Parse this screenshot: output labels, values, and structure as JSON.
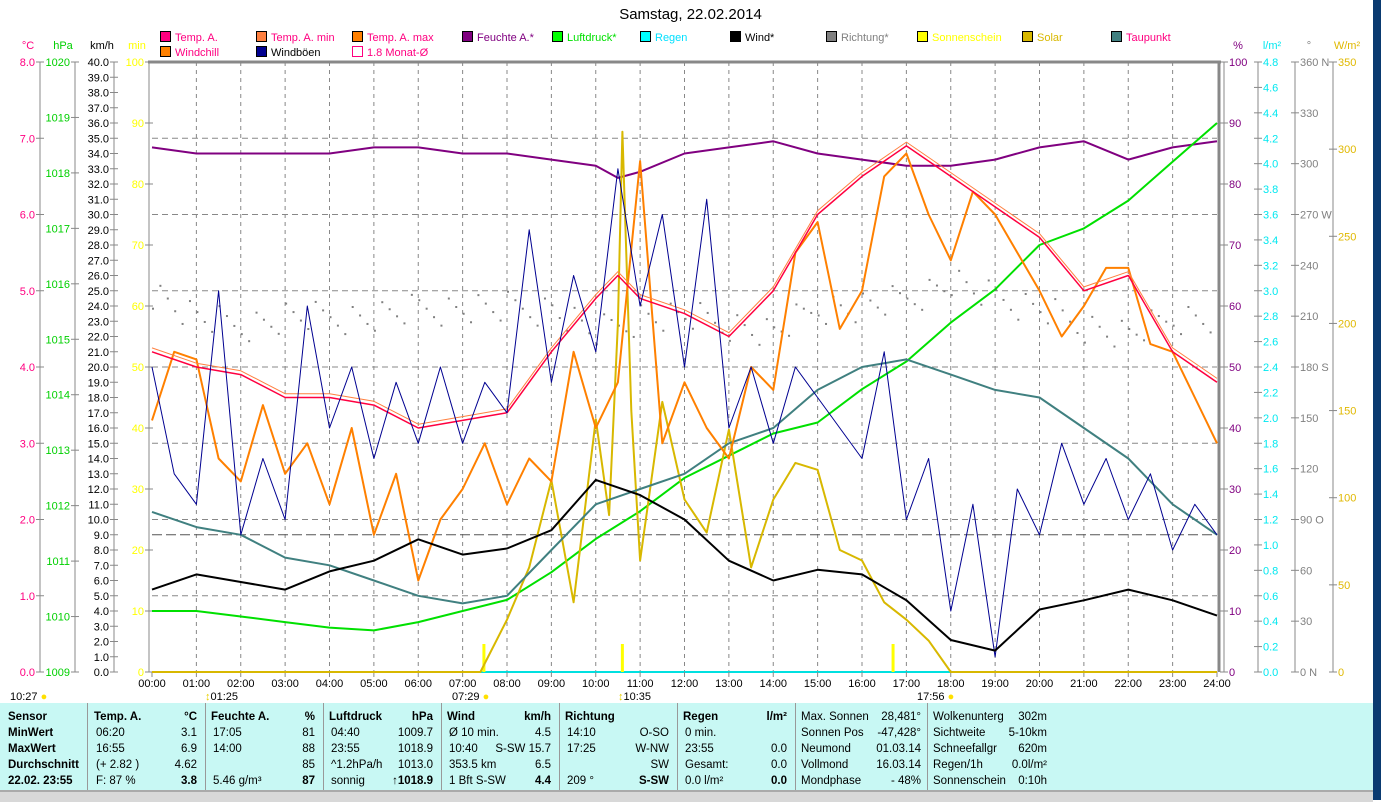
{
  "title": "Samstag, 22.02.2014",
  "legend": [
    {
      "label": "Temp. A.",
      "color": "#ff0080",
      "swatch": "#ff0080"
    },
    {
      "label": "Temp. A. min",
      "color": "#ff0080",
      "swatch": "#ff8040"
    },
    {
      "label": "Temp. A. max",
      "color": "#ff0080",
      "swatch": "#ff8000"
    },
    {
      "label": "Feuchte A.*",
      "color": "#800080",
      "swatch": "#800080"
    },
    {
      "label": "Luftdruck*",
      "color": "#00e000",
      "swatch": "#00ff00"
    },
    {
      "label": "Regen",
      "color": "#00e0ff",
      "swatch": "#00ffff"
    },
    {
      "label": "Wind*",
      "color": "#000000",
      "swatch": "#000000"
    },
    {
      "label": "Richtung*",
      "color": "#808080",
      "swatch": "#808080"
    },
    {
      "label": "Sonnenschein",
      "color": "#ffff00",
      "swatch": "#ffff00"
    },
    {
      "label": "Solar",
      "color": "#d8b800",
      "swatch": "#d8b800"
    },
    {
      "label": "Taupunkt",
      "color": "#ff0080",
      "swatch": "#408080"
    },
    {
      "label": "Windchill",
      "color": "#ff0080",
      "swatch": "#ff8000"
    },
    {
      "label": "Windböen",
      "color": "#000000",
      "swatch": "#000090"
    },
    {
      "label": "1.8 Monat-Ø",
      "color": "#ff0080",
      "swatch": "#ffffff"
    }
  ],
  "chart_data": {
    "type": "line",
    "title": "Samstag, 22.02.2014",
    "x_ticks": [
      "00:00",
      "01:00",
      "02:00",
      "03:00",
      "04:00",
      "05:00",
      "06:00",
      "07:00",
      "08:00",
      "09:00",
      "10:00",
      "11:00",
      "12:00",
      "13:00",
      "14:00",
      "15:00",
      "16:00",
      "17:00",
      "18:00",
      "19:00",
      "20:00",
      "21:00",
      "22:00",
      "23:00",
      "24:00"
    ],
    "xlim_hours": [
      0,
      24
    ],
    "axes_left": [
      {
        "unit": "°C",
        "min": 0,
        "max": 8,
        "step": 1,
        "dec": 1,
        "color": "#ff0080"
      },
      {
        "unit": "hPa",
        "min": 1009,
        "max": 1020,
        "step": 1,
        "dec": 0,
        "color": "#00d000"
      },
      {
        "unit": "km/h",
        "min": 0,
        "max": 40,
        "step": 1,
        "dec": 1,
        "color": "#000000"
      },
      {
        "unit": "min",
        "min": 0,
        "max": 100,
        "step": 10,
        "dec": 0,
        "color": "#ffff00"
      }
    ],
    "axes_right": [
      {
        "unit": "%",
        "min": 0,
        "max": 100,
        "step": 10,
        "dec": 0,
        "color": "#800080"
      },
      {
        "unit": "l/m²",
        "min": 0,
        "max": 4.8,
        "step": 0.2,
        "dec": 1,
        "color": "#00e8f0"
      },
      {
        "unit": "°",
        "min": 0,
        "max": 360,
        "step": 30,
        "dec": 0,
        "color": "#808080",
        "suffix": {
          "0": "N",
          "90": "O",
          "180": "S",
          "270": "W",
          "360": "N"
        }
      },
      {
        "unit": "W/m²",
        "min": 0,
        "max": 350,
        "step": 50,
        "dec": 0,
        "color": "#e0b800"
      }
    ],
    "monthly_avg_c": 1.8,
    "series": [
      {
        "name": "Feuchte A.",
        "axis": "%",
        "color": "#800080",
        "width": 2,
        "x": [
          0,
          1,
          2,
          3,
          4,
          5,
          6,
          7,
          8,
          9,
          10,
          10.5,
          11,
          12,
          13,
          14,
          15,
          16,
          17,
          18,
          19,
          20,
          21,
          22,
          23,
          24
        ],
        "values": [
          86,
          85,
          85,
          85,
          85,
          86,
          86,
          85,
          85,
          84,
          83,
          81,
          82,
          85,
          86,
          87,
          85,
          84,
          83,
          83,
          84,
          86,
          87,
          84,
          86,
          87
        ]
      },
      {
        "name": "Luftdruck",
        "axis": "hPa",
        "color": "#00e000",
        "width": 2,
        "x": [
          0,
          1,
          2,
          3,
          4,
          5,
          6,
          7,
          8,
          9,
          10,
          11,
          12,
          13,
          14,
          15,
          16,
          17,
          18,
          19,
          20,
          21,
          22,
          23,
          24
        ],
        "values": [
          1010.1,
          1010.1,
          1010.0,
          1009.9,
          1009.8,
          1009.75,
          1009.9,
          1010.1,
          1010.3,
          1010.8,
          1011.4,
          1011.9,
          1012.5,
          1012.9,
          1013.3,
          1013.5,
          1014.1,
          1014.6,
          1015.3,
          1015.9,
          1016.7,
          1017.0,
          1017.5,
          1018.2,
          1018.9
        ]
      },
      {
        "name": "Solar",
        "axis": "W/m²",
        "color": "#d8b800",
        "width": 2,
        "x": [
          0,
          7.4,
          8,
          8.5,
          9,
          9.5,
          10,
          10.3,
          10.5,
          10.6,
          10.8,
          11,
          11.5,
          12,
          12.5,
          13,
          13.5,
          14,
          14.5,
          15,
          15.5,
          16,
          16.5,
          17,
          17.5,
          18,
          24
        ],
        "values": [
          0,
          0,
          30,
          60,
          110,
          40,
          145,
          90,
          200,
          310,
          150,
          64,
          155,
          99,
          80,
          139,
          60,
          99,
          120,
          116,
          70,
          64,
          40,
          30,
          18,
          0,
          0
        ]
      },
      {
        "name": "Taupunkt",
        "axis": "°C",
        "color": "#408080",
        "width": 2,
        "x": [
          0,
          1,
          2,
          3,
          4,
          5,
          6,
          7,
          8,
          9,
          10,
          11,
          12,
          13,
          14,
          15,
          16,
          17,
          18,
          19,
          20,
          21,
          22,
          23,
          24
        ],
        "values": [
          2.1,
          1.9,
          1.8,
          1.5,
          1.4,
          1.2,
          1.0,
          0.9,
          1.0,
          1.6,
          2.2,
          2.4,
          2.6,
          3.0,
          3.2,
          3.7,
          4.0,
          4.1,
          3.9,
          3.7,
          3.6,
          3.2,
          2.8,
          2.2,
          1.8
        ]
      },
      {
        "name": "Windchill",
        "axis": "°C",
        "color": "#ff8000",
        "width": 2,
        "x": [
          0,
          0.5,
          1,
          1.5,
          2,
          2.5,
          3,
          3.5,
          4,
          4.5,
          5,
          5.5,
          6,
          6.5,
          7,
          7.5,
          8,
          8.5,
          9,
          9.5,
          10,
          10.5,
          11,
          11.5,
          12,
          12.5,
          13,
          13.5,
          14,
          14.5,
          15,
          15.5,
          16,
          16.5,
          17,
          17.5,
          18,
          18.5,
          19,
          19.5,
          20,
          20.5,
          21,
          21.5,
          22,
          22.5,
          23,
          23.5,
          24
        ],
        "values": [
          3.3,
          4.2,
          4.1,
          2.8,
          2.5,
          3.5,
          2.6,
          3.0,
          2.2,
          3.2,
          1.8,
          2.6,
          1.2,
          2.0,
          2.4,
          3.0,
          2.2,
          2.8,
          2.5,
          4.2,
          3.2,
          3.8,
          6.7,
          3.0,
          3.8,
          3.2,
          2.8,
          4.0,
          3.7,
          5.5,
          5.9,
          4.5,
          5.0,
          6.5,
          6.8,
          6.0,
          5.4,
          6.3,
          6.0,
          5.5,
          5.0,
          4.4,
          4.8,
          5.3,
          5.3,
          4.3,
          4.2,
          3.6,
          3.0
        ]
      },
      {
        "name": "Temp. A. max",
        "axis": "°C",
        "color": "#ff8040",
        "width": 1,
        "x": [
          0,
          1,
          2,
          3,
          4,
          5,
          6,
          7,
          8,
          9,
          10,
          10.5,
          11,
          12,
          13,
          14,
          15,
          16,
          17,
          18,
          19,
          20,
          21,
          22,
          23,
          24
        ],
        "values": [
          4.25,
          4.05,
          3.95,
          3.65,
          3.65,
          3.55,
          3.25,
          3.35,
          3.45,
          4.25,
          4.95,
          5.25,
          4.95,
          4.75,
          4.45,
          5.05,
          6.05,
          6.55,
          6.95,
          6.55,
          6.15,
          5.75,
          5.05,
          5.25,
          4.25,
          3.85
        ]
      },
      {
        "name": "Temp. A.",
        "axis": "°C",
        "color": "#ff0040",
        "width": 1.5,
        "x": [
          0,
          1,
          2,
          3,
          4,
          5,
          6,
          7,
          8,
          9,
          10,
          10.5,
          11,
          12,
          13,
          14,
          15,
          16,
          17,
          18,
          19,
          20,
          21,
          22,
          23,
          24
        ],
        "values": [
          4.2,
          4.0,
          3.9,
          3.6,
          3.6,
          3.5,
          3.2,
          3.3,
          3.4,
          4.2,
          4.9,
          5.2,
          4.9,
          4.7,
          4.4,
          5.0,
          6.0,
          6.5,
          6.9,
          6.5,
          6.1,
          5.7,
          5.0,
          5.2,
          4.2,
          3.8
        ]
      },
      {
        "name": "Windböen",
        "axis": "km/h",
        "color": "#000090",
        "width": 1,
        "x": [
          0,
          0.5,
          1,
          1.5,
          2,
          2.5,
          3,
          3.5,
          4,
          4.5,
          5,
          5.5,
          6,
          6.5,
          7,
          7.5,
          8,
          8.5,
          9,
          9.5,
          10,
          10.5,
          11,
          11.5,
          12,
          12.5,
          13,
          13.5,
          14,
          14.5,
          15,
          15.5,
          16,
          16.5,
          17,
          17.5,
          18,
          18.5,
          19,
          19.5,
          20,
          20.5,
          21,
          21.5,
          22,
          22.5,
          23,
          23.5,
          24
        ],
        "values": [
          20,
          13,
          11,
          25,
          9,
          14,
          10,
          24,
          16,
          20,
          14,
          19,
          15,
          20,
          15,
          19,
          17,
          29,
          19,
          26,
          21,
          33,
          24,
          30,
          20,
          31,
          16,
          20,
          15,
          20,
          18,
          16,
          14,
          21,
          10,
          14,
          4,
          11,
          1,
          12,
          9,
          15,
          11,
          14,
          10,
          13,
          8,
          11,
          9
        ]
      },
      {
        "name": "Wind",
        "axis": "km/h",
        "color": "#000000",
        "width": 2,
        "x": [
          0,
          1,
          2,
          3,
          4,
          5,
          6,
          7,
          8,
          9,
          10,
          11,
          12,
          13,
          14,
          15,
          16,
          17,
          18,
          19,
          20,
          21,
          22,
          23,
          24
        ],
        "values": [
          5.4,
          6.4,
          5.9,
          5.4,
          6.6,
          7.3,
          8.7,
          7.7,
          8.1,
          9.3,
          12.6,
          11.6,
          10.0,
          7.3,
          6.0,
          6.7,
          6.4,
          4.7,
          2.1,
          1.4,
          4.1,
          4.7,
          5.4,
          4.7,
          3.7
        ]
      }
    ],
    "direction": {
      "name": "Richtung",
      "axis": "°",
      "color": "#808080",
      "x": [
        0,
        1,
        2,
        3,
        4,
        5,
        6,
        7,
        8,
        9,
        10,
        11,
        12,
        13,
        14,
        15,
        16,
        17,
        18,
        19,
        20,
        21,
        22,
        23,
        24
      ],
      "values": [
        225,
        210,
        205,
        210,
        210,
        210,
        215,
        215,
        215,
        215,
        200,
        210,
        210,
        205,
        200,
        215,
        215,
        220,
        230,
        220,
        215,
        205,
        200,
        210,
        210
      ]
    },
    "sunshine_hours": [
      7.48,
      10.6,
      16.7
    ]
  },
  "events": [
    {
      "time": "10:27",
      "icon": "moon-icon"
    },
    {
      "time": "01:25",
      "icon": "moonrise-icon"
    },
    {
      "time": "07:29",
      "icon": "sunrise-icon"
    },
    {
      "time": "10:35",
      "icon": "moonset-icon"
    },
    {
      "time": "17:56",
      "icon": "sunset-icon"
    }
  ],
  "table": {
    "sensor": {
      "head": "Sensor",
      "rows": [
        "MinWert",
        "MaxWert",
        "Durchschnitt",
        "22.02. 23:55"
      ]
    },
    "cols": [
      {
        "head": "Temp. A.",
        "unit": "°C",
        "rows": [
          [
            "06:20",
            "3.1"
          ],
          [
            "16:55",
            "6.9"
          ],
          [
            "(+ 2.82 )",
            "4.62"
          ],
          [
            "F: 87 %",
            "3.8"
          ]
        ]
      },
      {
        "head": "Feuchte A.",
        "unit": "%",
        "rows": [
          [
            "17:05",
            "81"
          ],
          [
            "14:00",
            "88"
          ],
          [
            "",
            "85"
          ],
          [
            "5.46 g/m³",
            "87"
          ]
        ]
      },
      {
        "head": "Luftdruck",
        "unit": "hPa",
        "rows": [
          [
            "04:40",
            "1009.7"
          ],
          [
            "23:55",
            "1018.9"
          ],
          [
            "^1.2hPa/h",
            "1013.0"
          ],
          [
            "sonnig",
            "↑1018.9"
          ]
        ]
      },
      {
        "head": "Wind",
        "unit": "km/h",
        "rows": [
          [
            "Ø 10 min.",
            "4.5"
          ],
          [
            "10:40",
            "S-SW 15.7"
          ],
          [
            "353.5 km",
            "6.5"
          ],
          [
            "1 Bft S-SW",
            "4.4"
          ]
        ]
      },
      {
        "head": "Richtung",
        "unit": "",
        "rows": [
          [
            "14:10",
            "O-SO"
          ],
          [
            "17:25",
            "W-NW"
          ],
          [
            "",
            "SW"
          ],
          [
            "209 °",
            "S-SW"
          ]
        ]
      },
      {
        "head": "Regen",
        "unit": "l/m²",
        "rows": [
          [
            "0 min.",
            ""
          ],
          [
            "23:55",
            "0.0"
          ],
          [
            "Gesamt:",
            "0.0"
          ],
          [
            "0.0 l/m²",
            "0.0"
          ]
        ]
      }
    ],
    "astro": [
      [
        "Max. Sonnen",
        "28,481°"
      ],
      [
        "Sonnen Pos",
        "-47,428°"
      ],
      [
        "Neumond",
        "01.03.14"
      ],
      [
        "Vollmond",
        "16.03.14"
      ],
      [
        "Mondphase",
        "- 48%"
      ]
    ],
    "misc": [
      [
        "Wolkenunterg",
        "302m"
      ],
      [
        "Sichtweite",
        "5-10km"
      ],
      [
        "Schneefallgr",
        "620m"
      ],
      [
        "Regen/1h",
        "0.0l/m²"
      ],
      [
        "Sonnenschein",
        "0:10h"
      ]
    ]
  }
}
